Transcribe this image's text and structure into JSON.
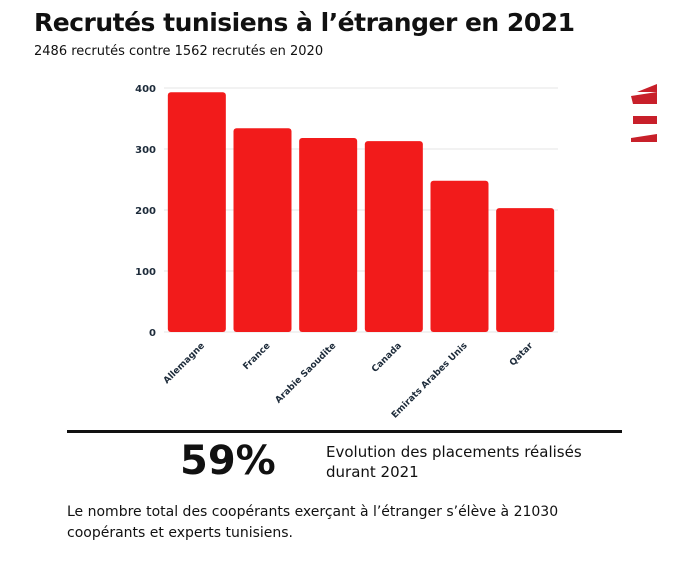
{
  "title": "Recrutés tunisiens à l’étranger en 2021",
  "subtitle": "2486 recrutés contre 1562 recrutés en 2020",
  "stat": {
    "value": "59%",
    "label": "Evolution des placements réalisés durant 2021"
  },
  "footer": "Le nombre total des coopérants exerçant à l’étranger s’élève à 21030 coopérants et experts tunisiens.",
  "logo": {
    "icon": "red-stripes-logo",
    "color": "#c8202a"
  },
  "chart_data": {
    "type": "bar",
    "title": "Recrutés tunisiens à l’étranger en 2021",
    "categories": [
      "Allemagne",
      "France",
      "Arabie Saoudite",
      "Canada",
      "Emirats Arabes Unis",
      "Qatar"
    ],
    "values": [
      393,
      334,
      318,
      313,
      248,
      203
    ],
    "yticks": [
      0,
      100,
      200,
      300,
      400
    ],
    "ylim": [
      0,
      400
    ],
    "grid": true,
    "color": "#f21b1b",
    "xlabel": "",
    "ylabel": ""
  }
}
